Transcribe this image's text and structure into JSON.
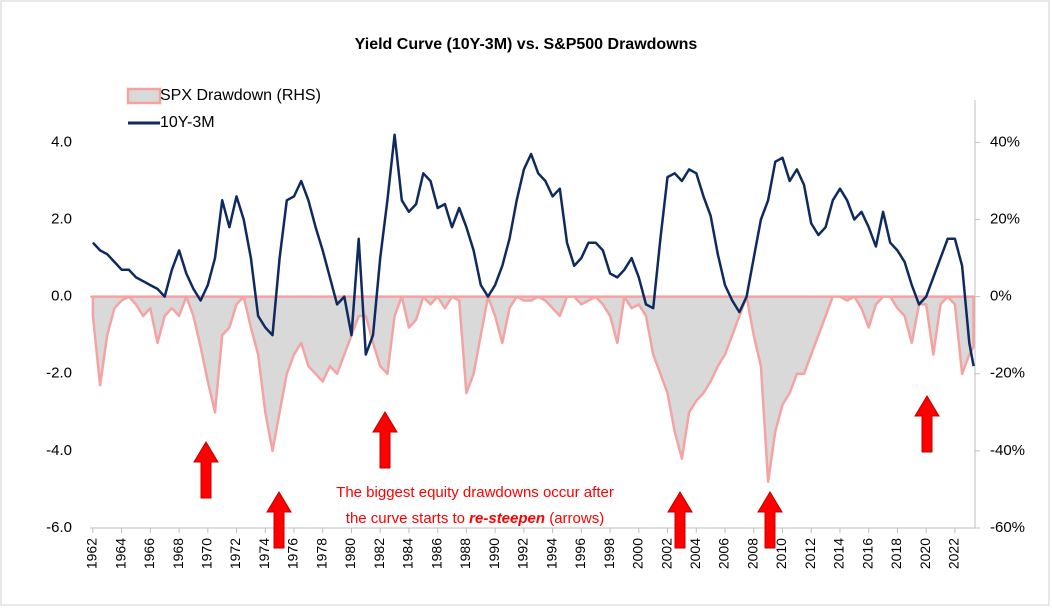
{
  "chart_data": {
    "type": "line",
    "title": "Yield Curve (10Y-3M) vs. S&P500 Drawdowns",
    "x": [
      1962,
      1962.5,
      1963,
      1963.5,
      1964,
      1964.5,
      1965,
      1965.5,
      1966,
      1966.5,
      1967,
      1967.5,
      1968,
      1968.5,
      1969,
      1969.5,
      1970,
      1970.5,
      1971,
      1971.5,
      1972,
      1972.5,
      1973,
      1973.5,
      1974,
      1974.5,
      1975,
      1975.5,
      1976,
      1976.5,
      1977,
      1977.5,
      1978,
      1978.5,
      1979,
      1979.5,
      1980,
      1980.5,
      1981,
      1981.5,
      1982,
      1982.5,
      1983,
      1983.5,
      1984,
      1984.5,
      1985,
      1985.5,
      1986,
      1986.5,
      1987,
      1987.5,
      1988,
      1988.5,
      1989,
      1989.5,
      1990,
      1990.5,
      1991,
      1991.5,
      1992,
      1992.5,
      1993,
      1993.5,
      1994,
      1994.5,
      1995,
      1995.5,
      1996,
      1996.5,
      1997,
      1997.5,
      1998,
      1998.5,
      1999,
      1999.5,
      2000,
      2000.5,
      2001,
      2001.5,
      2002,
      2002.5,
      2003,
      2003.5,
      2004,
      2004.5,
      2005,
      2005.5,
      2006,
      2006.5,
      2007,
      2007.5,
      2008,
      2008.5,
      2009,
      2009.5,
      2010,
      2010.5,
      2011,
      2011.5,
      2012,
      2012.5,
      2013,
      2013.5,
      2014,
      2014.5,
      2015,
      2015.5,
      2016,
      2016.5,
      2017,
      2017.5,
      2018,
      2018.5,
      2019,
      2019.5,
      2020,
      2020.5,
      2021,
      2021.5,
      2022,
      2022.5,
      2023,
      2023.3
    ],
    "series": [
      {
        "name": "SPX Drawdown (RHS)",
        "kind": "area",
        "axis": "y2",
        "color": "#f4a3a3",
        "fill": "#d9d9d9",
        "values": [
          -5,
          -23,
          -10,
          -3,
          -1,
          0,
          -2,
          -5,
          -3,
          -12,
          -5,
          -3,
          -5,
          0,
          -5,
          -13,
          -22,
          -30,
          -10,
          -8,
          -2,
          0,
          -8,
          -15,
          -30,
          -40,
          -30,
          -20,
          -15,
          -12,
          -18,
          -20,
          -22,
          -18,
          -20,
          -15,
          -10,
          -5,
          -5,
          -12,
          -18,
          -20,
          -5,
          0,
          -8,
          -6,
          0,
          -2,
          0,
          -3,
          0,
          -1,
          -25,
          -20,
          -10,
          0,
          -5,
          -12,
          -3,
          0,
          -1,
          -1,
          0,
          -1,
          -3,
          -5,
          0,
          0,
          -2,
          -1,
          0,
          -2,
          -5,
          -12,
          0,
          -3,
          -2,
          -5,
          -15,
          -20,
          -25,
          -35,
          -42,
          -30,
          -27,
          -25,
          -22,
          -18,
          -15,
          -10,
          -5,
          0,
          -10,
          -18,
          -48,
          -35,
          -28,
          -25,
          -20,
          -20,
          -15,
          -10,
          -5,
          0,
          0,
          -1,
          0,
          -3,
          -8,
          -2,
          0,
          0,
          -3,
          -5,
          -12,
          -2,
          -2,
          -15,
          -2,
          0,
          -2,
          -20,
          -15,
          -13
        ]
      },
      {
        "name": "10Y-3M",
        "kind": "line",
        "axis": "y",
        "color": "#0e2a5e",
        "values": [
          1.4,
          1.2,
          1.1,
          0.9,
          0.7,
          0.7,
          0.5,
          0.4,
          0.3,
          0.2,
          0.0,
          0.7,
          1.2,
          0.6,
          0.2,
          -0.1,
          0.3,
          1.0,
          2.5,
          1.8,
          2.6,
          2.0,
          1.0,
          -0.5,
          -0.8,
          -1.0,
          1.0,
          2.5,
          2.6,
          3.0,
          2.5,
          1.8,
          1.2,
          0.5,
          -0.2,
          0.0,
          -1.0,
          1.5,
          -1.5,
          -1.0,
          1.0,
          2.5,
          4.2,
          2.5,
          2.2,
          2.4,
          3.2,
          3.0,
          2.3,
          2.4,
          1.8,
          2.3,
          1.8,
          1.2,
          0.3,
          0.0,
          0.3,
          0.8,
          1.5,
          2.5,
          3.3,
          3.7,
          3.2,
          3.0,
          2.6,
          2.8,
          1.4,
          0.8,
          1.0,
          1.4,
          1.4,
          1.2,
          0.6,
          0.5,
          0.7,
          1.0,
          0.5,
          -0.2,
          -0.3,
          1.5,
          3.1,
          3.2,
          3.0,
          3.3,
          3.2,
          2.6,
          2.1,
          1.1,
          0.3,
          -0.1,
          -0.4,
          0.0,
          1.0,
          2.0,
          2.5,
          3.5,
          3.6,
          3.0,
          3.3,
          2.9,
          1.9,
          1.6,
          1.8,
          2.5,
          2.8,
          2.5,
          2.0,
          2.2,
          1.8,
          1.3,
          2.2,
          1.4,
          1.2,
          0.9,
          0.3,
          -0.2,
          0.0,
          0.5,
          1.0,
          1.5,
          1.5,
          0.8,
          -1.2,
          -1.8
        ]
      }
    ],
    "xlim": [
      1961.8,
      2023.4
    ],
    "xticks": [
      1962,
      1964,
      1966,
      1968,
      1970,
      1972,
      1974,
      1976,
      1978,
      1980,
      1982,
      1984,
      1986,
      1988,
      1990,
      1992,
      1994,
      1996,
      1998,
      2000,
      2002,
      2004,
      2006,
      2008,
      2010,
      2012,
      2014,
      2016,
      2018,
      2020,
      2022
    ],
    "ylim": [
      -6,
      5.1
    ],
    "yticks": [
      {
        "value": -6,
        "label": "-6.0"
      },
      {
        "value": -4,
        "label": "-4.0"
      },
      {
        "value": -2,
        "label": "-2.0"
      },
      {
        "value": 0,
        "label": "0.0"
      },
      {
        "value": 2,
        "label": "2.0"
      },
      {
        "value": 4,
        "label": "4.0"
      }
    ],
    "y2lim": [
      -60,
      51
    ],
    "y2ticks": [
      {
        "value": -60,
        "label": "-60%"
      },
      {
        "value": -40,
        "label": "-40%"
      },
      {
        "value": -20,
        "label": "-20%"
      },
      {
        "value": 0,
        "label": "0%"
      },
      {
        "value": 20,
        "label": "20%"
      },
      {
        "value": 40,
        "label": "40%"
      }
    ],
    "annotation": {
      "line1": "The biggest equity drawdowns occur after",
      "line2_start": "the curve starts to ",
      "line2_emphasis": "re-steepen",
      "line2_end": " (arrows)"
    },
    "legend": "upper left"
  }
}
